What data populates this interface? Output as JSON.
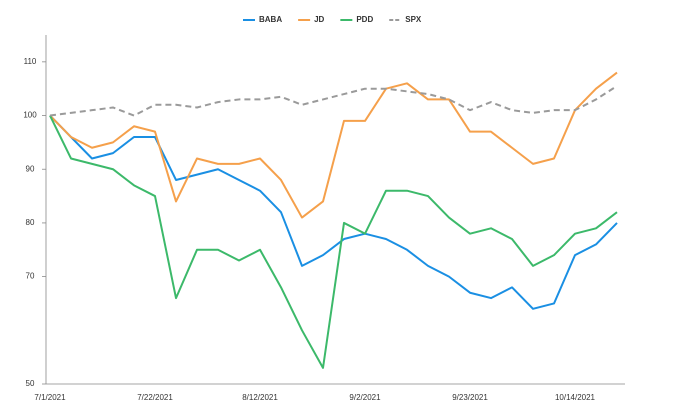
{
  "chart_data": {
    "type": "line",
    "categories": [
      "7/1/2021",
      null,
      null,
      null,
      null,
      "7/22/2021",
      null,
      null,
      null,
      null,
      "8/12/2021",
      null,
      null,
      null,
      null,
      "9/2/2021",
      null,
      null,
      null,
      null,
      "9/23/2021",
      null,
      null,
      null,
      null,
      "10/14/2021",
      null,
      null
    ],
    "series": [
      {
        "name": "BABA",
        "color": "#1a8fe3",
        "dashed": false,
        "values": [
          100,
          96,
          92,
          93,
          96,
          96,
          88,
          89,
          90,
          88,
          86,
          82,
          72,
          74,
          77,
          78,
          77,
          75,
          72,
          70,
          67,
          66,
          68,
          64,
          65,
          74,
          76,
          80
        ]
      },
      {
        "name": "JD",
        "color": "#f5a04b",
        "dashed": false,
        "values": [
          100,
          96,
          94,
          95,
          98,
          97,
          84,
          92,
          91,
          91,
          92,
          88,
          81,
          84,
          99,
          99,
          105,
          106,
          103,
          103,
          97,
          97,
          94,
          91,
          92,
          101,
          105,
          108
        ]
      },
      {
        "name": "PDD",
        "color": "#3cb96a",
        "dashed": false,
        "values": [
          100,
          92,
          91,
          90,
          87,
          85,
          66,
          75,
          75,
          73,
          75,
          68,
          60,
          53,
          80,
          78,
          86,
          86,
          85,
          81,
          78,
          79,
          77,
          72,
          74,
          78,
          79,
          82
        ]
      },
      {
        "name": "SPX",
        "color": "#9a9a9a",
        "dashed": true,
        "values": [
          100,
          100.5,
          101,
          101.5,
          100,
          102,
          102,
          101.5,
          102.5,
          103,
          103,
          103.5,
          102,
          103,
          104,
          105,
          105,
          104.5,
          104,
          103,
          101,
          102.5,
          101,
          100.5,
          101,
          101,
          103,
          105.5
        ]
      }
    ],
    "ylim": [
      50,
      115
    ],
    "yticks": [
      50,
      70,
      80,
      90,
      100,
      110
    ],
    "legend": "top"
  }
}
